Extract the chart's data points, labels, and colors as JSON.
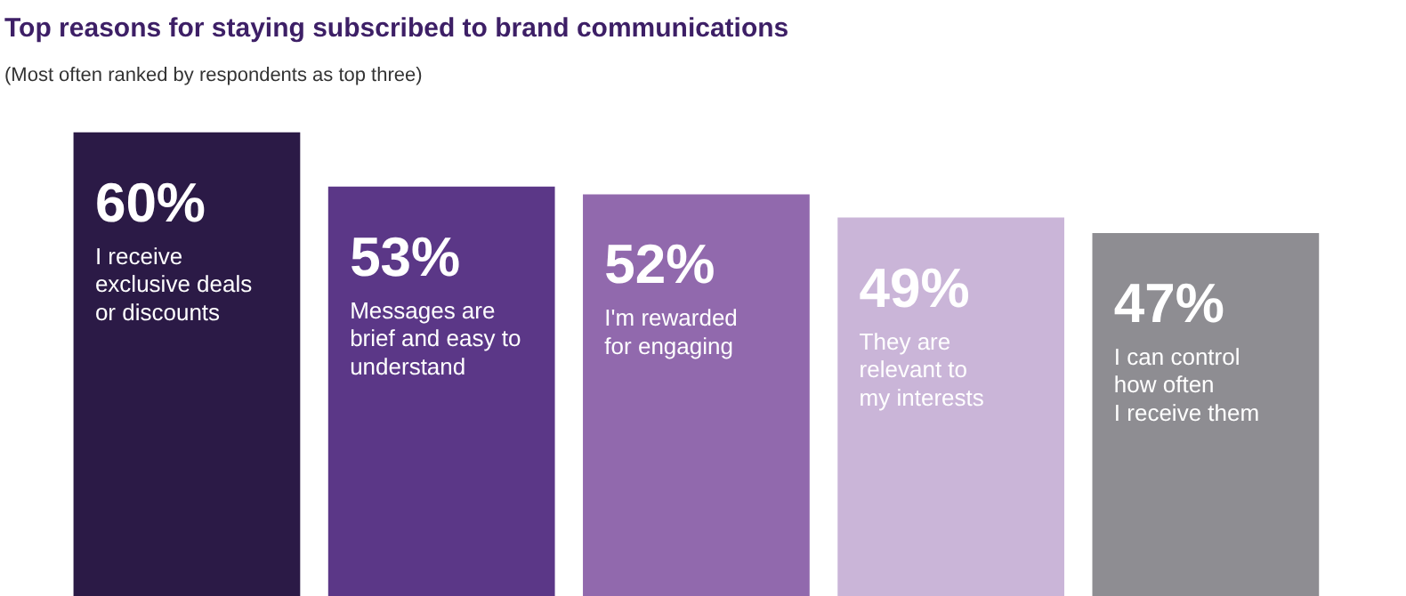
{
  "chart_data": {
    "type": "bar",
    "title": "Top reasons for staying subscribed to brand communications",
    "subtitle": "(Most often ranked by respondents as top three)",
    "categories": [
      "I receive\nexclusive deals\nor discounts",
      "Messages are\nbrief and easy to\nunderstand",
      "I'm rewarded\nfor engaging",
      "They are\nrelevant to\nmy interests",
      "I can control\nhow often\nI receive them"
    ],
    "values": [
      60,
      53,
      52,
      49,
      47
    ],
    "colors": [
      "#2b1a46",
      "#5b3787",
      "#9169ad",
      "#cab5d8",
      "#8e8d92"
    ],
    "value_labels": [
      "60%",
      "53%",
      "52%",
      "49%",
      "47%"
    ],
    "grid": false
  }
}
